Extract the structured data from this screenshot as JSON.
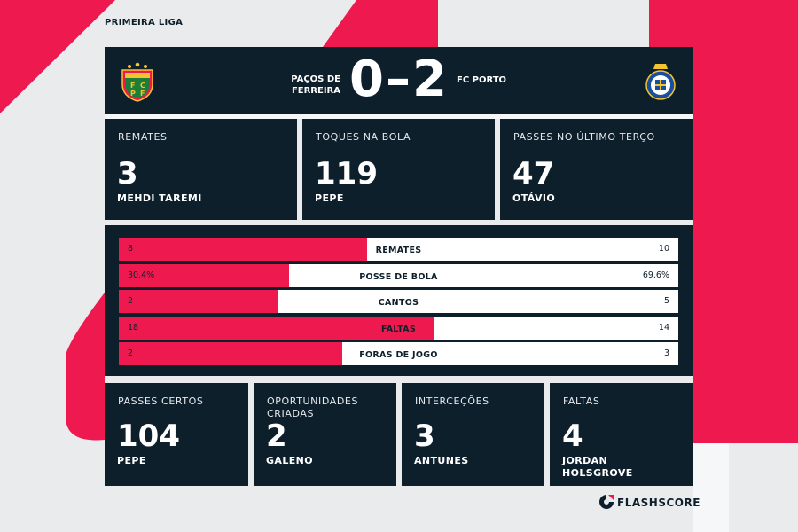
{
  "league": "PRIMEIRA LIGA",
  "match": {
    "home_team": [
      "PAÇOS DE",
      "FERREIRA"
    ],
    "away_team": "FC PORTO",
    "score": "0–2"
  },
  "top_stats": [
    {
      "label": "REMATES",
      "value": "3",
      "player": "MEHDI TAREMI"
    },
    {
      "label": "TOQUES NA BOLA",
      "value": "119",
      "player": "PEPE"
    },
    {
      "label": "PASSES NO ÚLTIMO TERÇO",
      "value": "47",
      "player": "OTÁVIO"
    }
  ],
  "comparison": [
    {
      "label": "REMATES",
      "home": "8",
      "away": "10",
      "home_share": 0.444
    },
    {
      "label": "POSSE DE BOLA",
      "home": "30.4%",
      "away": "69.6%",
      "home_share": 0.304
    },
    {
      "label": "CANTOS",
      "home": "2",
      "away": "5",
      "home_share": 0.286
    },
    {
      "label": "FALTAS",
      "home": "18",
      "away": "14",
      "home_share": 0.563
    },
    {
      "label": "FORAS DE JOGO",
      "home": "2",
      "away": "3",
      "home_share": 0.4
    }
  ],
  "bottom_stats": [
    {
      "label": [
        "PASSES CERTOS"
      ],
      "value": "104",
      "player": [
        "PEPE"
      ]
    },
    {
      "label": [
        "OPORTUNIDADES",
        "CRIADAS"
      ],
      "value": "2",
      "player": [
        "GALENO"
      ]
    },
    {
      "label": [
        "INTERCEÇÕES"
      ],
      "value": "3",
      "player": [
        "ANTUNES"
      ]
    },
    {
      "label": [
        "FALTAS"
      ],
      "value": "4",
      "player": [
        "JORDAN",
        "HOLSGROVE"
      ]
    }
  ],
  "brand": "FLASHSCORE",
  "colors": {
    "accent": "#ee1a4f",
    "panel": "#0e1f2c",
    "background": "#e9ebed"
  }
}
